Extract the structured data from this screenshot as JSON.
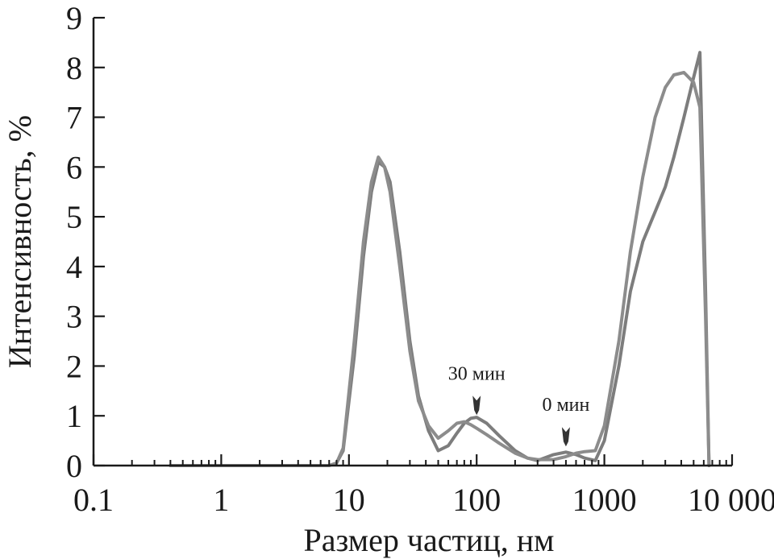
{
  "chart_data": {
    "type": "line",
    "xscale": "log",
    "xlim": [
      0.1,
      10000
    ],
    "ylim": [
      0,
      9
    ],
    "xlabel": "Размер частиц, нм",
    "ylabel": "Интенсивность, %",
    "xticks": [
      {
        "value": 0.1,
        "label": "0.1"
      },
      {
        "value": 1,
        "label": "1"
      },
      {
        "value": 10,
        "label": "10"
      },
      {
        "value": 100,
        "label": "100"
      },
      {
        "value": 1000,
        "label": "1000"
      },
      {
        "value": 10000,
        "label": "10 000"
      }
    ],
    "yticks": [
      0,
      1,
      2,
      3,
      4,
      5,
      6,
      7,
      8,
      9
    ],
    "grid": false,
    "legend": "none",
    "colors": {
      "series_a": "#7d7d7d",
      "series_b": "#8c8c8c",
      "axis": "#1a1a1a"
    },
    "annotations": [
      {
        "text": "30 мин",
        "x": 100,
        "y": 1.08
      },
      {
        "text": "0 мин",
        "x": 500,
        "y": 0.45
      }
    ],
    "series": [
      {
        "x": [
          0.4,
          1,
          3,
          7,
          8,
          9,
          11,
          13,
          15,
          17,
          19,
          21,
          25,
          30,
          35,
          42,
          50,
          60,
          70,
          80,
          90,
          100,
          120,
          150,
          200,
          250,
          300,
          400,
          500,
          600,
          700,
          850,
          1000,
          1300,
          1600,
          2000,
          2500,
          3000,
          3500,
          4200,
          5000,
          5600,
          6200,
          6600
        ],
        "y": [
          0,
          0,
          0,
          0,
          0.05,
          0.3,
          2.2,
          4.2,
          5.5,
          6.1,
          6.0,
          5.7,
          4.3,
          2.5,
          1.4,
          0.7,
          0.3,
          0.4,
          0.65,
          0.85,
          0.95,
          0.97,
          0.85,
          0.6,
          0.3,
          0.15,
          0.1,
          0.22,
          0.27,
          0.22,
          0.15,
          0.1,
          0.5,
          2.0,
          3.5,
          4.5,
          5.1,
          5.6,
          6.2,
          7.0,
          7.8,
          8.3,
          3.5,
          0
        ]
      },
      {
        "x": [
          0.4,
          1,
          3,
          7,
          8,
          9,
          11,
          13,
          15,
          17,
          19,
          21,
          25,
          30,
          35,
          42,
          50,
          60,
          70,
          80,
          90,
          100,
          120,
          150,
          200,
          250,
          300,
          400,
          500,
          600,
          700,
          850,
          1000,
          1300,
          1600,
          2000,
          2500,
          3000,
          3500,
          4200,
          5000,
          5600,
          6200,
          6600
        ],
        "y": [
          0,
          0,
          0,
          0,
          0.05,
          0.35,
          2.5,
          4.5,
          5.7,
          6.2,
          6.0,
          5.5,
          4.0,
          2.3,
          1.3,
          0.8,
          0.55,
          0.7,
          0.85,
          0.88,
          0.82,
          0.75,
          0.62,
          0.45,
          0.25,
          0.15,
          0.12,
          0.12,
          0.18,
          0.25,
          0.28,
          0.3,
          0.8,
          2.5,
          4.3,
          5.8,
          7.0,
          7.6,
          7.85,
          7.9,
          7.7,
          7.2,
          3.0,
          0
        ]
      }
    ]
  }
}
